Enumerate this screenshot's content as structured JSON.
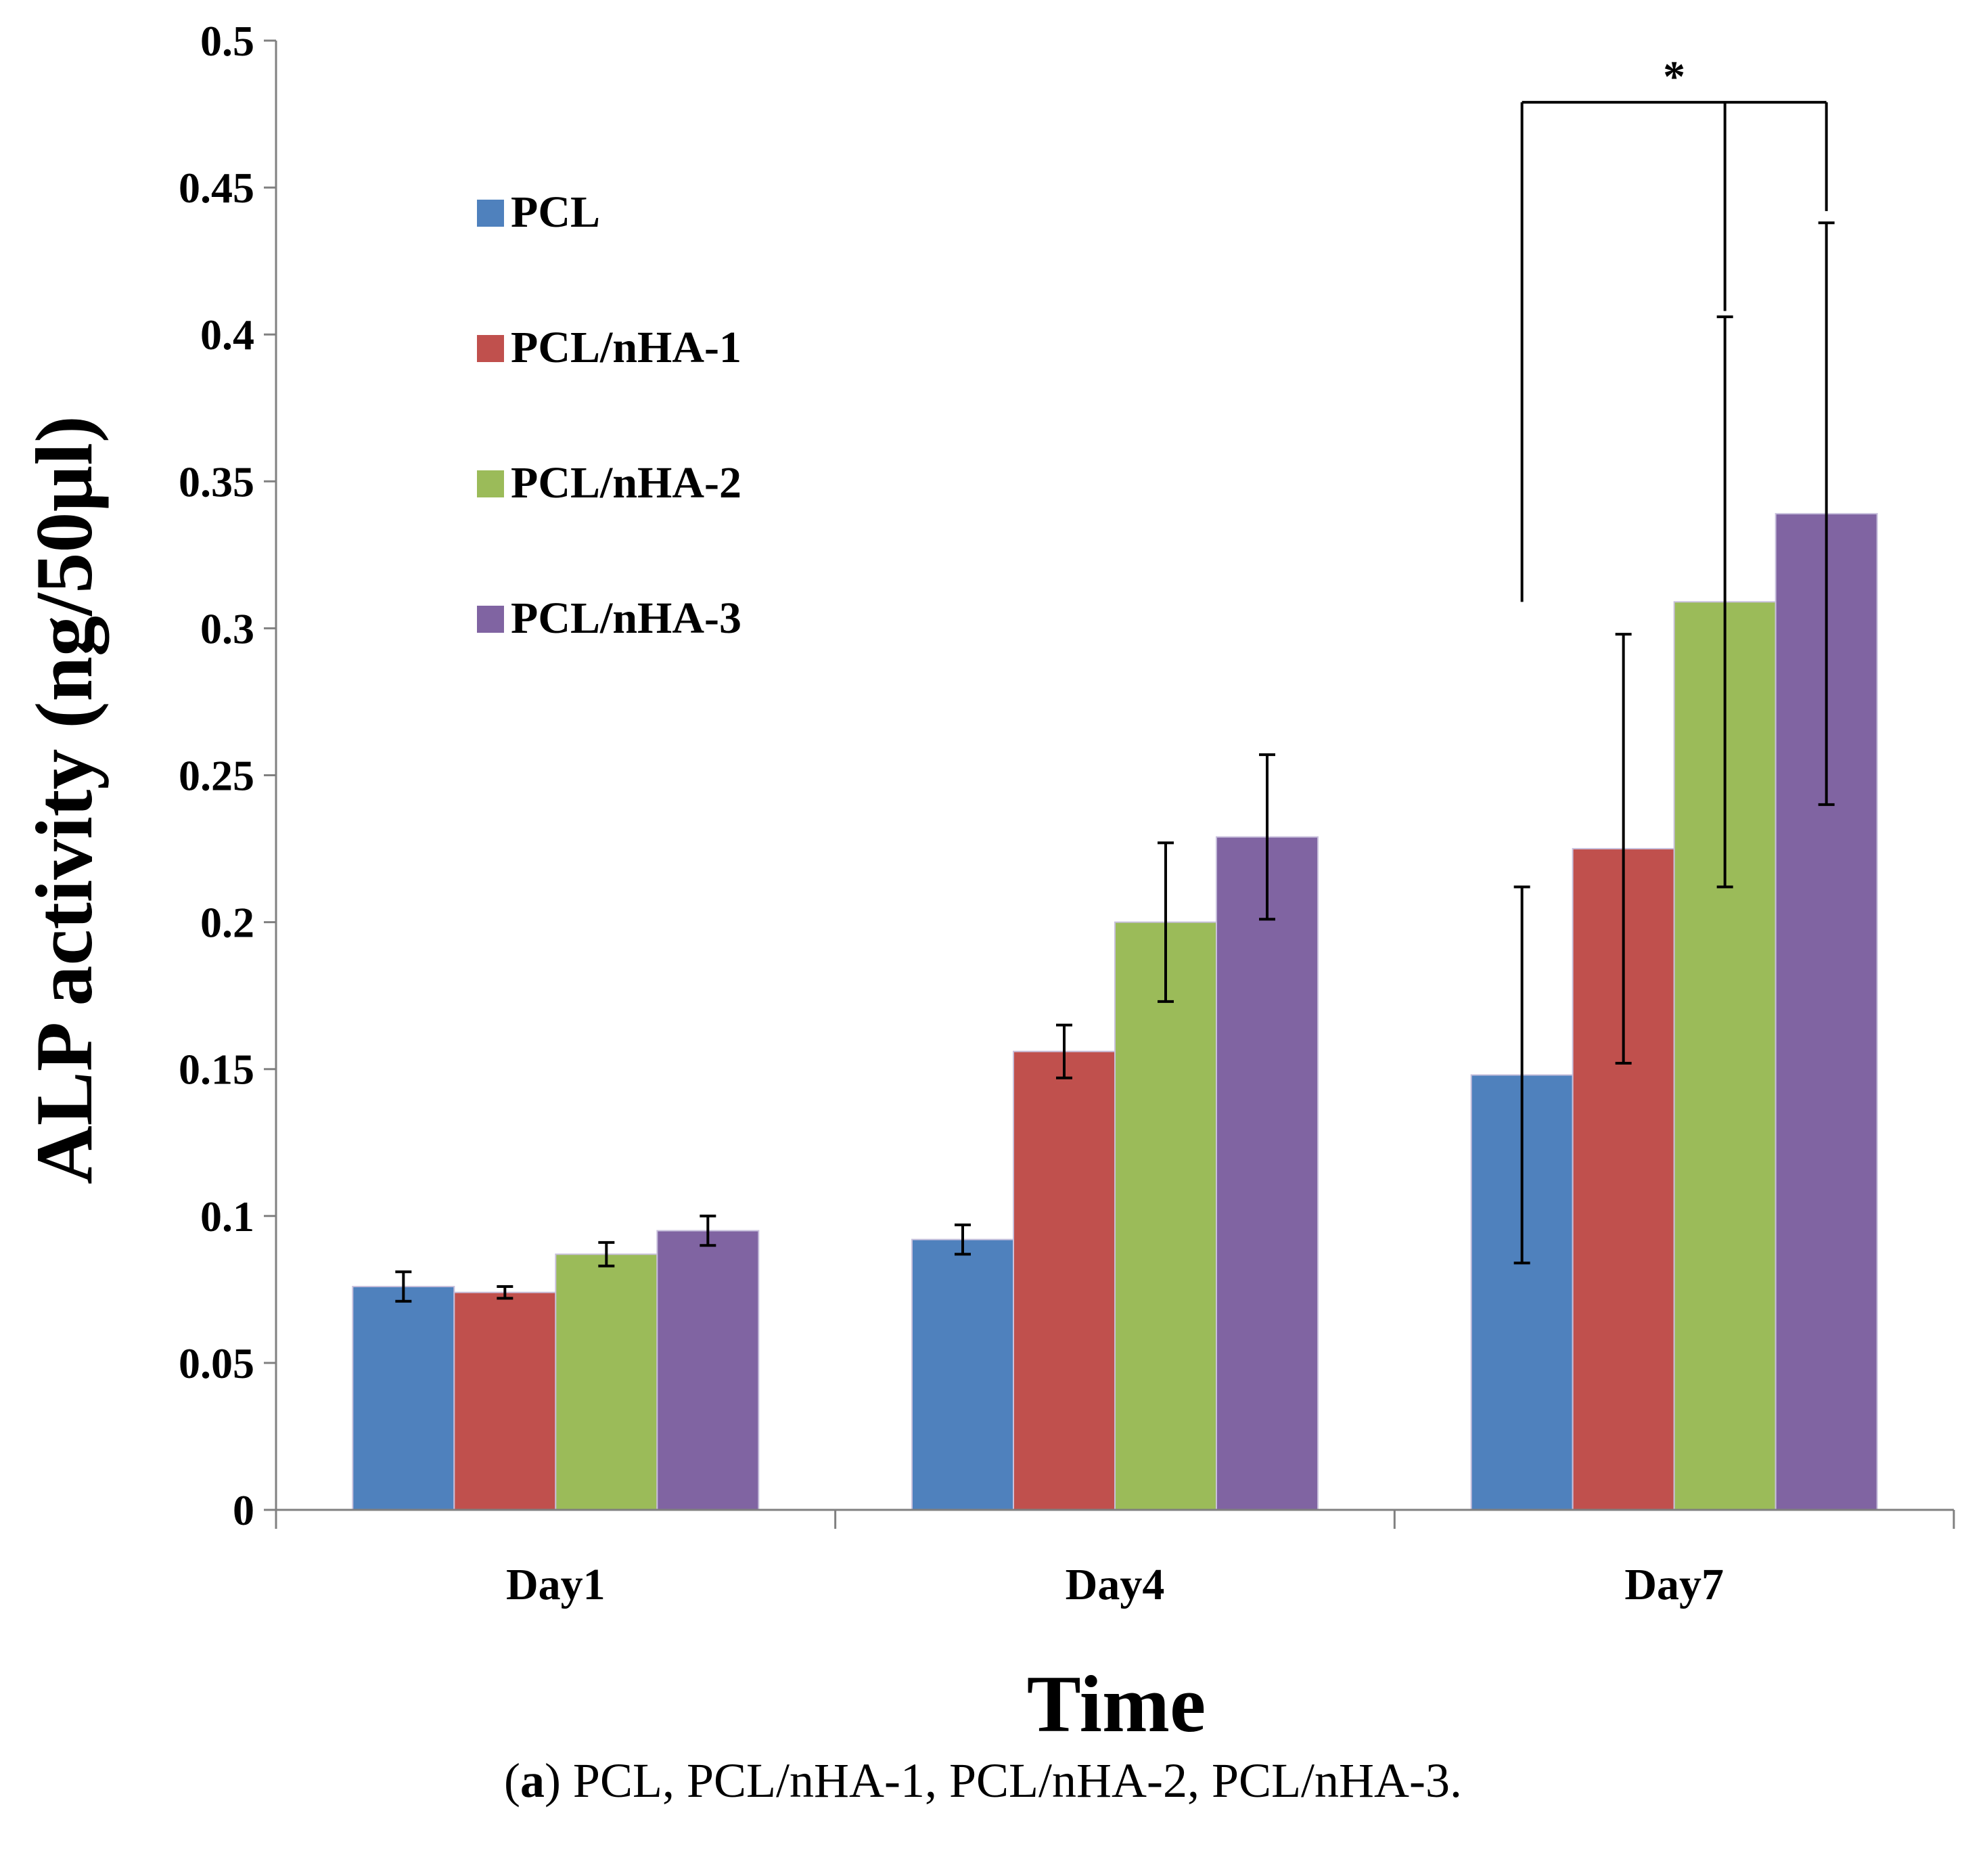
{
  "chart_data": {
    "type": "bar",
    "xlabel": "Time",
    "ylabel": "ALP activity (ng/50µl)",
    "ylim": [
      0,
      0.5
    ],
    "yticks": [
      "0",
      "0.05",
      "0.1",
      "0.15",
      "0.2",
      "0.25",
      "0.3",
      "0.35",
      "0.4",
      "0.45",
      "0.5"
    ],
    "categories": [
      "Day1",
      "Day4",
      "Day7"
    ],
    "legend_position": "top-left",
    "series": [
      {
        "name": "PCL",
        "color": "#4f81bd",
        "values": [
          0.076,
          0.092,
          0.148
        ],
        "errors": [
          0.005,
          0.005,
          0.064
        ]
      },
      {
        "name": "PCL/nHA-1",
        "color": "#c0504d",
        "values": [
          0.074,
          0.156,
          0.225
        ],
        "errors": [
          0.002,
          0.009,
          0.073
        ]
      },
      {
        "name": "PCL/nHA-2",
        "color": "#9bbb59",
        "values": [
          0.087,
          0.2,
          0.309
        ],
        "errors": [
          0.004,
          0.027,
          0.097
        ]
      },
      {
        "name": "PCL/nHA-3",
        "color": "#8064a2",
        "values": [
          0.095,
          0.229,
          0.339
        ],
        "errors": [
          0.005,
          0.028,
          0.099
        ]
      }
    ],
    "annotations": [
      {
        "text": "*",
        "category": "Day7"
      }
    ]
  },
  "caption": {
    "label": "a",
    "text": "PCL, PCL/nHA-1, PCL/nHA-2, PCL/nHA-3."
  }
}
